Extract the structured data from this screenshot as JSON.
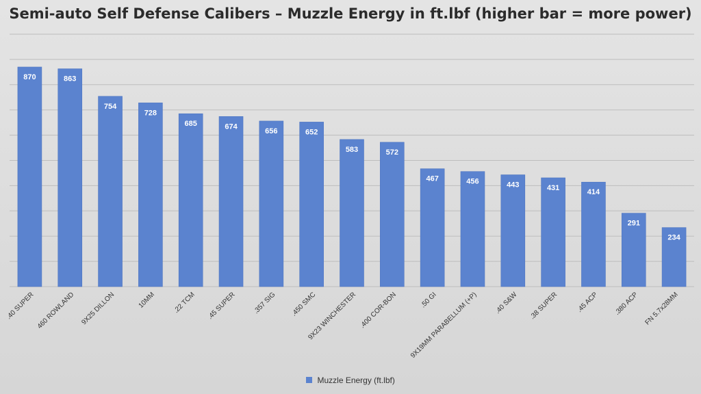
{
  "colors": {
    "bar": "#5b83cf",
    "bar_border": "#5077c2",
    "grid": "#bdbdbd",
    "label_text": "#ffffff",
    "tick_text": "#333333"
  },
  "chart_data": {
    "type": "bar",
    "title": "Semi-auto Self Defense Calibers – Muzzle Energy in ft.lbf (higher bar = more power)",
    "xlabel": "",
    "ylabel": "",
    "ylim": [
      0,
      1000
    ],
    "grid": true,
    "legend_position": "bottom",
    "categories": [
      ".40 SUPER",
      "460 ROWLAND",
      "9X25 DILLON",
      "10MM",
      ".22 TCM",
      ".45 SUPER",
      ".357 SIG",
      ".450 SMC",
      "9X23 WINCHESTER",
      ".400 COR-BON",
      ".50 GI",
      "9X19MM PARABELLUM (+P)",
      ".40 S&W",
      ".38 SUPER",
      ".45 ACP",
      ".380 ACP",
      "FN 5.7x28MM"
    ],
    "series": [
      {
        "name": "Muzzle Energy (ft.lbf)",
        "values": [
          870,
          863,
          754,
          728,
          685,
          674,
          656,
          652,
          583,
          572,
          467,
          456,
          443,
          431,
          414,
          291,
          234
        ]
      }
    ]
  }
}
